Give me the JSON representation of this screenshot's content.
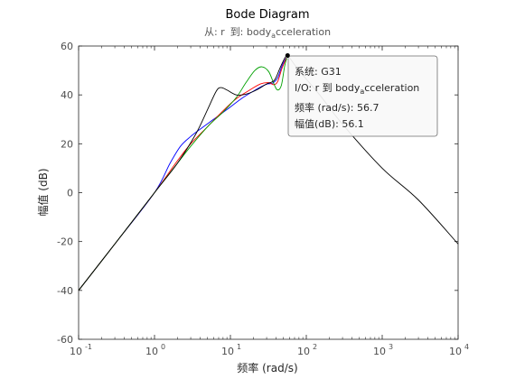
{
  "chart_data": {
    "type": "line",
    "title": "Bode Diagram",
    "subtitle": {
      "from_label": "从: r",
      "to_label": "到: body",
      "to_subscript": "a",
      "to_rest": "cceleration"
    },
    "xlabel": "频率  (rad/s)",
    "ylabel": "幅值 (dB)",
    "xscale": "log",
    "xlim": [
      0.1,
      10000
    ],
    "ylim": [
      -60,
      60
    ],
    "x_ticks": [
      {
        "base": "10",
        "exp": "-1",
        "value": 0.1
      },
      {
        "base": "10",
        "exp": "0",
        "value": 1
      },
      {
        "base": "10",
        "exp": "1",
        "value": 10
      },
      {
        "base": "10",
        "exp": "2",
        "value": 100
      },
      {
        "base": "10",
        "exp": "3",
        "value": 1000
      },
      {
        "base": "10",
        "exp": "4",
        "value": 10000
      }
    ],
    "y_ticks": [
      60,
      40,
      20,
      0,
      -20,
      -40,
      -60
    ],
    "grid": false,
    "series": [
      {
        "color": "#000000",
        "x": [
          0.1,
          0.3,
          1,
          2,
          3.5,
          5,
          6.5,
          7.5,
          9,
          12,
          16,
          22,
          30,
          38,
          45,
          52,
          56.7,
          80,
          150,
          300,
          1000,
          3000,
          10000
        ],
        "y": [
          -40,
          -21,
          0,
          12,
          24,
          34,
          41.5,
          43,
          42,
          40,
          40.3,
          42,
          44.5,
          46,
          51,
          55,
          56.1,
          50,
          40,
          28,
          10,
          -3,
          -21
        ]
      },
      {
        "color": "#0000ff",
        "x": [
          0.1,
          0.3,
          1,
          1.6,
          2.2,
          3,
          4,
          6,
          9,
          14,
          20,
          26,
          31,
          36,
          42,
          48,
          56.7
        ],
        "y": [
          -40,
          -21,
          0,
          12,
          19,
          23,
          26,
          30,
          34,
          38.5,
          41.5,
          43.5,
          44.5,
          44.8,
          47,
          52,
          56.1
        ]
      },
      {
        "color": "#ff0000",
        "x": [
          0.1,
          0.3,
          1,
          2,
          3,
          5,
          8,
          12,
          18,
          25,
          32,
          37,
          42,
          48,
          56.7
        ],
        "y": [
          -40,
          -21,
          0,
          13,
          20,
          27,
          33.5,
          38.5,
          42,
          44.5,
          45,
          44.2,
          45.5,
          51,
          56.1
        ]
      },
      {
        "color": "#00a000",
        "x": [
          0.1,
          0.3,
          1,
          2,
          3,
          5,
          8,
          12,
          16,
          21,
          26,
          32,
          38,
          42,
          47,
          52,
          56.7
        ],
        "y": [
          -40,
          -21,
          0,
          12,
          19,
          27,
          33,
          39,
          45,
          50,
          51.5,
          49.5,
          44,
          42,
          44,
          52,
          56.1
        ]
      }
    ],
    "datatip": {
      "system_label": "系统: G31",
      "io_label_prefix": "I/O: r 到 body",
      "io_label_sub": "a",
      "io_label_rest": "cceleration",
      "freq_label": "频率 (rad/s): 56.7",
      "mag_label": "幅值(dB): 56.1",
      "x": 56.7,
      "y": 56.1
    }
  }
}
